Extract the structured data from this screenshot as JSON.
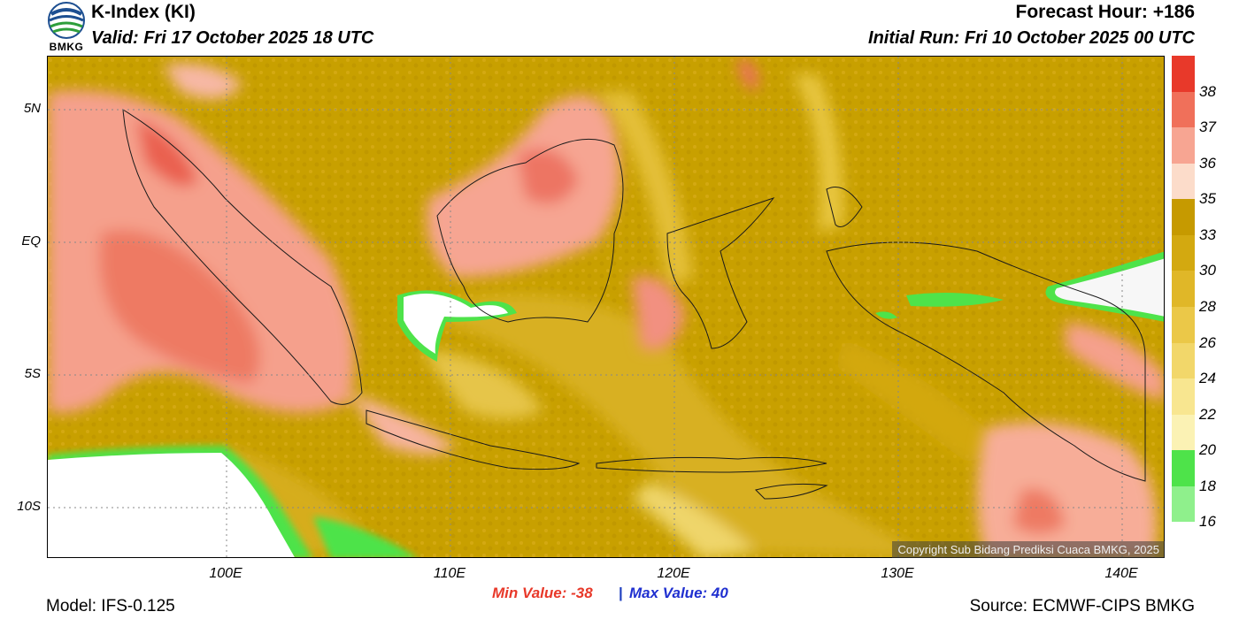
{
  "header": {
    "logo_text": "BMKG",
    "title": "K-Index (KI)",
    "valid": "Valid: Fri 17 October 2025 18 UTC",
    "forecast_hour": "Forecast Hour: +186",
    "initial_run": "Initial Run: Fri 10 October 2025 00 UTC"
  },
  "axes": {
    "lat_labels": [
      "5N",
      "EQ",
      "5S",
      "10S"
    ],
    "lon_labels": [
      "100E",
      "110E",
      "120E",
      "130E",
      "140E"
    ]
  },
  "stats": {
    "min_label": "Min Value: -38",
    "separator": "|",
    "max_label": "Max Value:  40"
  },
  "footer": {
    "model": "Model: IFS-0.125",
    "source": "Source: ECMWF-CIPS BMKG",
    "copyright": "Copyright Sub Bidang Prediksi Cuaca BMKG, 2025"
  },
  "colorbar": {
    "labels": [
      "38",
      "37",
      "36",
      "35",
      "33",
      "30",
      "28",
      "26",
      "24",
      "22",
      "20",
      "18",
      "16"
    ],
    "colors": [
      "#e8392a",
      "#f0705a",
      "#f7a592",
      "#fcdcca",
      "#c69a00",
      "#d3a910",
      "#e0b728",
      "#ebc848",
      "#f2d76a",
      "#f8e690",
      "#fbf2b4",
      "#4ee34a",
      "#8ff08c",
      "#ffffff"
    ]
  }
}
